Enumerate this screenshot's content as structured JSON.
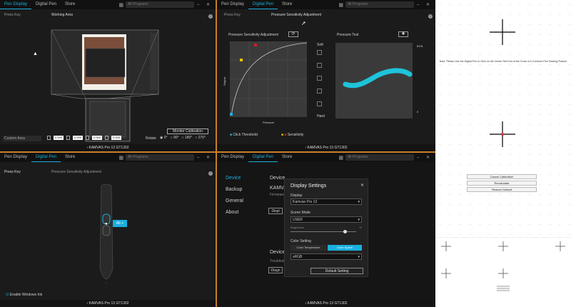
{
  "tabs": {
    "pen_display": "Pen Display",
    "digital_pen": "Digital Pen",
    "store": "Store",
    "all_programs": "All Programs"
  },
  "p1": {
    "press_key": "Press Key",
    "working_area": "Working Area",
    "custom_area": "Custom Area",
    "monitor_calibration": "Monitor Calibration",
    "rotate": "Rotate",
    "rot_options": [
      "0°",
      "90°",
      "180°",
      "270°"
    ],
    "coords": [
      "0.000",
      "0.000",
      "0.000",
      "0.000"
    ],
    "device": "KAMVAS Pro 13 GT1302"
  },
  "p2": {
    "press_key": "Press Key",
    "pressure_adjust": "Pressure Sensitivity Adjustment",
    "chart_title": "Pressure Sensitivity Adjustment",
    "pressure_test": "Pressure Test",
    "soft": "Soft",
    "hard": "Hard",
    "output": "Output",
    "pressure": "Pressure",
    "legend_click": "Click Threshold",
    "legend_sens": "Sensitivity",
    "scale_max": "8191",
    "scale_min": "0",
    "device": "KAMVAS Pro 13 GT1302"
  },
  "p3": {
    "press_key": "Press Key",
    "pressure_adjust": "Pressure Sensitivity Adjustment",
    "key_label": "Alt +",
    "enable_ink": "Enable Windows Ink",
    "device": "KAMVAS Pro 13 GT1302"
  },
  "p4": {
    "sidebar": [
      "Device",
      "Backup",
      "General",
      "About"
    ],
    "device_header": "Device",
    "kamvas": "KAMVAS",
    "firmware": "Firmware",
    "disp": "Displ",
    "device_d": "Device D",
    "troublesh": "Troublesh",
    "diag": "Diagn",
    "dialog_title": "Display Settings",
    "display_label": "Display",
    "display_value": "Kamvas Pro 13",
    "scene_label": "Scene Mode",
    "scene_value": "USER",
    "brightness": "Brightness",
    "brightness_pct": "%",
    "color_setting": "Color Setting",
    "color_temp": "Color Temperature",
    "color_space": "Color Space",
    "srgb": "sRGB",
    "default_setting": "Default Setting",
    "device": "KAMVAS Pro 13 GT1302"
  },
  "p5": {
    "note": "Note: Please Use the Digital Pen to Click on the Center Red Dot of the Cross in A Common Pen Holding Posture",
    "cancel": "Cancel Calibration",
    "recalculate": "Recalculate",
    "restore": "Restore Default"
  }
}
